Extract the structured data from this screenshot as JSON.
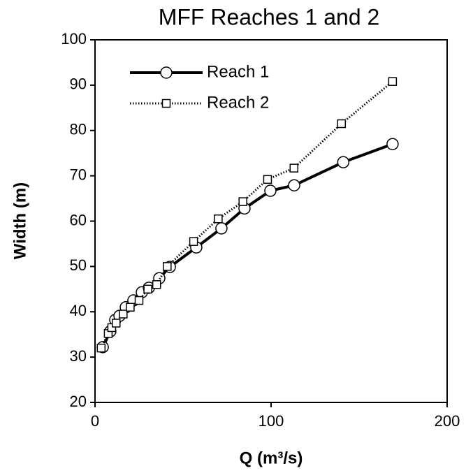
{
  "chart_data": {
    "type": "line",
    "title": "MFF Reaches 1 and 2",
    "x_label": "Q (m³/s)",
    "y_label": "Width (m)",
    "xlim": [
      0,
      200
    ],
    "xticks": [
      0,
      100,
      200
    ],
    "ylim": [
      20,
      100
    ],
    "yticks": [
      20,
      30,
      40,
      50,
      60,
      70,
      80,
      90,
      100
    ],
    "legend": "upper left",
    "series": [
      {
        "name": "Reach 1",
        "color": "#000000",
        "line_style": "solid",
        "marker": "circle",
        "x": [
          4.4,
          8.7,
          11.5,
          13.9,
          17.5,
          21.8,
          26.6,
          30.6,
          36.5,
          42.5,
          57.5,
          71.8,
          84.9,
          99.6,
          113.1,
          141,
          169
        ],
        "values": [
          32.2,
          35.7,
          38.2,
          39.1,
          41,
          42.5,
          44.3,
          45.3,
          47.4,
          49.9,
          54.2,
          58.4,
          62.8,
          66.7,
          67.9,
          73,
          77
        ]
      },
      {
        "name": "Reach 2",
        "color": "#000000",
        "line_style": "dotted",
        "marker": "square",
        "x": [
          3.5,
          7.5,
          9.5,
          12,
          16,
          20,
          25,
          30,
          35,
          41,
          56,
          70,
          84,
          98,
          113,
          140,
          169
        ],
        "values": [
          32,
          35.2,
          36.5,
          37.5,
          39.5,
          41,
          42.5,
          45,
          46,
          50,
          55.5,
          60.5,
          64.3,
          69.2,
          71.7,
          81.5,
          90.8
        ]
      }
    ]
  }
}
